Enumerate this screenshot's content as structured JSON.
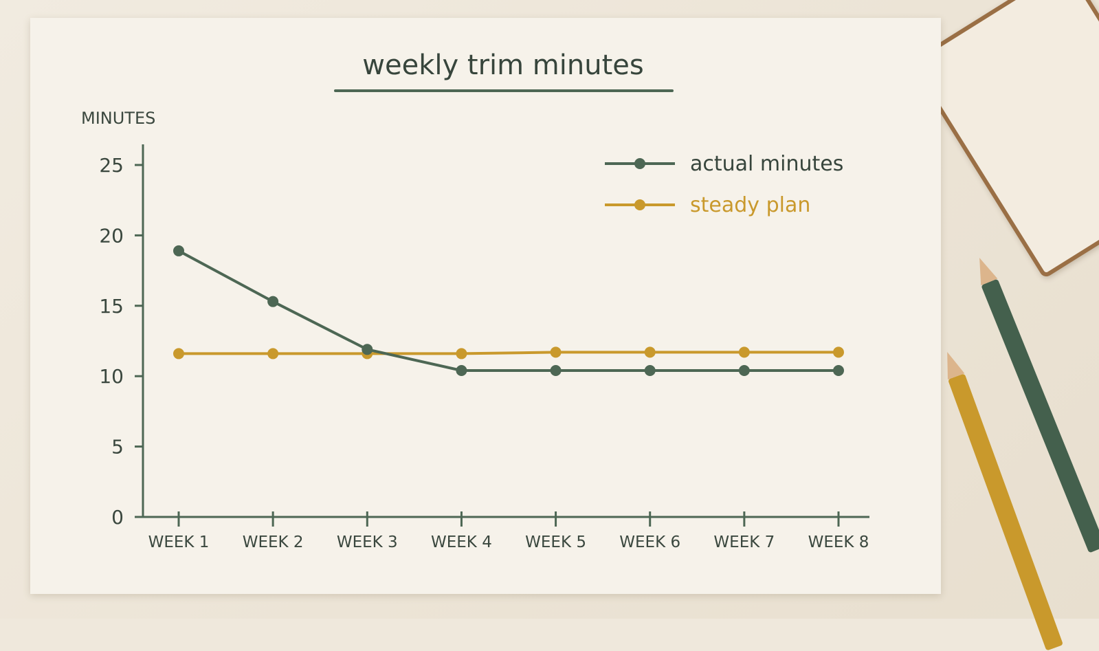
{
  "chart_data": {
    "type": "line",
    "title": "weekly trim minutes",
    "ylabel": "MINUTES",
    "xlabel": "",
    "categories": [
      "WEEK 1",
      "WEEK 2",
      "WEEK 3",
      "WEEK 4",
      "WEEK 5",
      "WEEK 6",
      "WEEK 7",
      "WEEK 8"
    ],
    "yticks": [
      0,
      5,
      10,
      15,
      20,
      25
    ],
    "ylim": [
      0,
      25
    ],
    "grid": false,
    "legend_position": "top-right",
    "series": [
      {
        "name": "actual minutes",
        "color": "#4d6754",
        "values": [
          18.9,
          15.3,
          11.9,
          10.4,
          10.4,
          10.4,
          10.4,
          10.4
        ]
      },
      {
        "name": "steady plan",
        "color": "#c9992c",
        "values": [
          11.6,
          11.6,
          11.6,
          11.6,
          11.7,
          11.7,
          11.7,
          11.7
        ]
      }
    ]
  }
}
